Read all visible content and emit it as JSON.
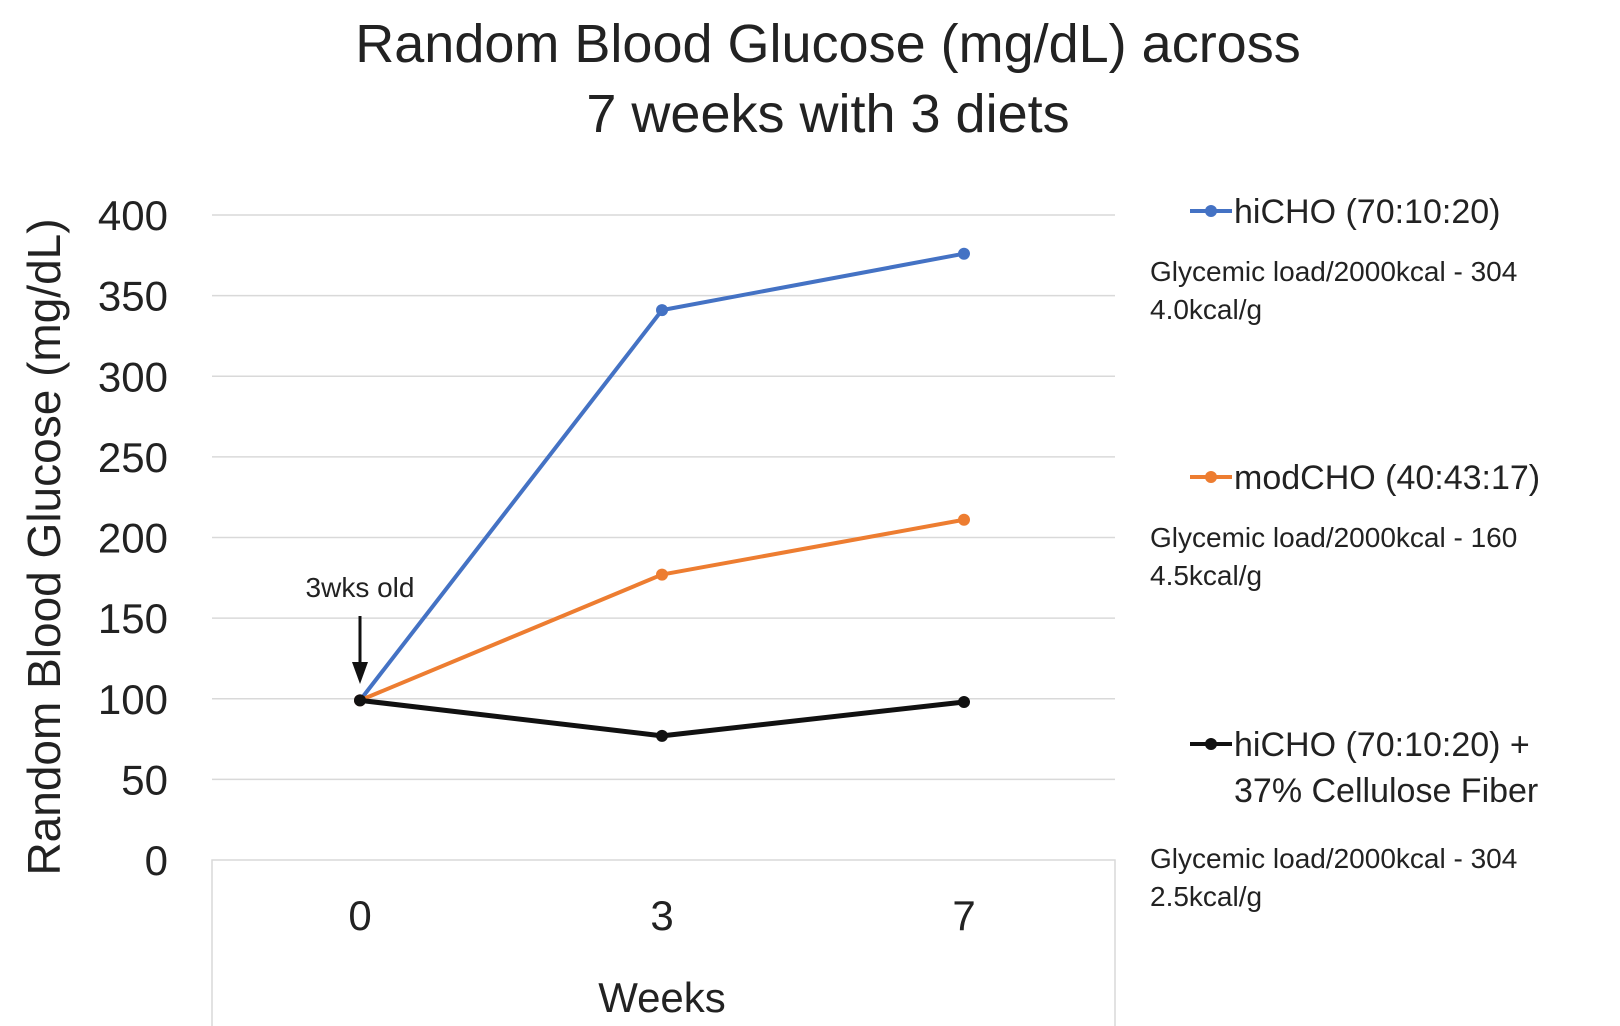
{
  "chart_data": {
    "type": "line",
    "title_lines": [
      "Random Blood Glucose (mg/dL) across",
      "7 weeks with 3 diets"
    ],
    "xlabel": "Weeks",
    "ylabel": "Random Blood Glucose (mg/dL)",
    "categories": [
      "0",
      "3",
      "7"
    ],
    "ylim": [
      0,
      400
    ],
    "yticks": [
      0,
      50,
      100,
      150,
      200,
      250,
      300,
      350,
      400
    ],
    "grid": true,
    "legend_position": "right",
    "annotation": "3wks old",
    "series": [
      {
        "name_lines": [
          "hiCHO (70:10:20)"
        ],
        "color": "#4472c4",
        "values": [
          99,
          341,
          376
        ],
        "notes": [
          "Glycemic load/2000kcal - 304",
          "4.0kcal/g"
        ]
      },
      {
        "name_lines": [
          "modCHO (40:43:17)"
        ],
        "color": "#ed7d31",
        "values": [
          99,
          177,
          211
        ],
        "notes": [
          "Glycemic load/2000kcal - 160",
          "4.5kcal/g"
        ]
      },
      {
        "name_lines": [
          "hiCHO (70:10:20) +",
          "37% Cellulose Fiber"
        ],
        "color": "#111111",
        "values": [
          99,
          77,
          98
        ],
        "notes": [
          "Glycemic load/2000kcal - 304",
          "2.5kcal/g"
        ]
      }
    ]
  }
}
